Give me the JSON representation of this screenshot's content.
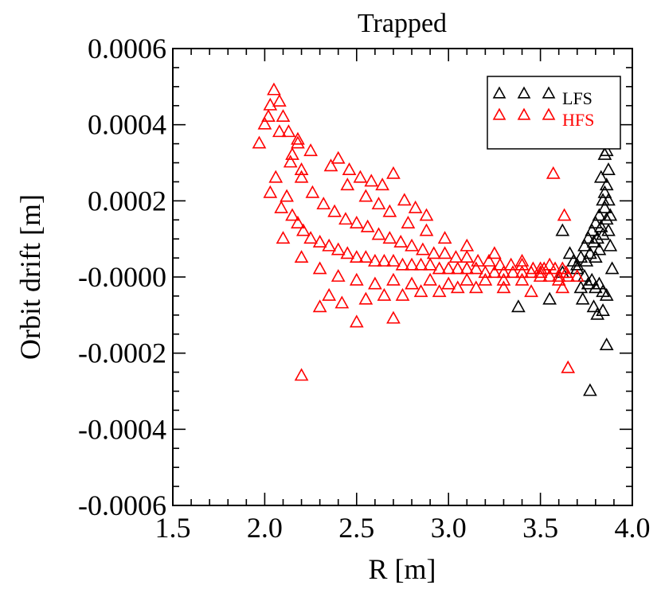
{
  "chart_data": {
    "type": "scatter",
    "title": "Trapped",
    "xlabel": "R [m]",
    "ylabel": "Orbit drift [m]",
    "xlim": [
      1.5,
      4.0
    ],
    "ylim": [
      -0.0006,
      0.0006
    ],
    "xticks": [
      1.5,
      2.0,
      2.5,
      3.0,
      3.5,
      4.0
    ],
    "xtick_labels": [
      "1.5",
      "2.0",
      "2.5",
      "3.0",
      "3.5",
      "4.0"
    ],
    "yticks": [
      -0.0006,
      -0.0004,
      -0.0002,
      0.0,
      0.0002,
      0.0004,
      0.0006
    ],
    "ytick_labels": [
      "-0.0006",
      "-0.0004",
      "-0.0002",
      "-0.0000",
      "0.0002",
      "0.0004",
      "0.0006"
    ],
    "grid": false,
    "legend_position": "top-right",
    "marker": "open-triangle",
    "series": [
      {
        "name": "LFS",
        "color": "#000000",
        "x": [
          3.62,
          3.66,
          3.68,
          3.7,
          3.72,
          3.74,
          3.75,
          3.76,
          3.77,
          3.78,
          3.79,
          3.8,
          3.81,
          3.82,
          3.83,
          3.84,
          3.85,
          3.86,
          3.87,
          3.88,
          3.89,
          3.74,
          3.76,
          3.78,
          3.8,
          3.82,
          3.84,
          3.86,
          3.85,
          3.86,
          3.87,
          3.83,
          3.85,
          3.88,
          3.77,
          3.86,
          3.73,
          3.79,
          3.81,
          3.84,
          3.38,
          3.55,
          3.72,
          3.62,
          3.7,
          3.8,
          3.82,
          3.84,
          3.86,
          3.87
        ],
        "y": [
          0.00012,
          6e-05,
          4e-05,
          2e-05,
          5e-05,
          8e-05,
          4e-05,
          0.0001,
          6e-05,
          0.00012,
          9e-05,
          0.00014,
          0.0001,
          0.00016,
          0.00013,
          0.0002,
          0.00018,
          0.00024,
          0.0002,
          8e-05,
          2e-05,
          0.0,
          -2e-05,
          -1e-05,
          -3e-05,
          -2e-05,
          -4e-05,
          -5e-05,
          0.00032,
          0.00033,
          0.00028,
          0.00026,
          0.00022,
          0.00016,
          -0.0003,
          -0.00018,
          -6e-05,
          -8e-05,
          -0.0001,
          -9e-05,
          -8e-05,
          -6e-05,
          -3e-05,
          1e-05,
          3e-05,
          5e-05,
          7e-05,
          0.00011,
          0.00015,
          0.00012
        ]
      },
      {
        "name": "HFS",
        "color": "#ff0000",
        "x": [
          1.97,
          2.0,
          2.03,
          2.05,
          2.08,
          2.1,
          2.13,
          2.15,
          2.18,
          2.2,
          2.03,
          2.06,
          2.09,
          2.12,
          2.15,
          2.18,
          2.21,
          2.25,
          2.3,
          2.35,
          2.4,
          2.45,
          2.5,
          2.55,
          2.6,
          2.65,
          2.7,
          2.75,
          2.8,
          2.85,
          2.9,
          2.95,
          3.0,
          3.05,
          3.1,
          3.15,
          3.2,
          3.25,
          3.3,
          3.35,
          3.4,
          3.45,
          3.5,
          3.55,
          3.6,
          3.65,
          3.7,
          2.02,
          2.08,
          2.14,
          2.2,
          2.26,
          2.32,
          2.38,
          2.44,
          2.5,
          2.56,
          2.62,
          2.68,
          2.74,
          2.8,
          2.86,
          2.92,
          2.98,
          3.04,
          3.1,
          3.16,
          3.22,
          3.28,
          3.34,
          3.4,
          3.46,
          3.52,
          3.58,
          3.64,
          2.1,
          2.2,
          2.3,
          2.4,
          2.5,
          2.6,
          2.7,
          2.8,
          2.9,
          3.0,
          3.1,
          3.2,
          3.3,
          3.4,
          3.5,
          3.6,
          2.4,
          2.46,
          2.52,
          2.58,
          2.64,
          2.7,
          2.76,
          2.82,
          2.88,
          2.2,
          2.3,
          2.5,
          2.7,
          3.57,
          3.63,
          3.65,
          2.18,
          2.25,
          2.36,
          2.45,
          2.55,
          2.62,
          2.68,
          2.78,
          2.88,
          2.98,
          3.1,
          3.25,
          3.4,
          3.5,
          3.55,
          3.62,
          2.35,
          2.42,
          2.55,
          2.65,
          2.75,
          2.85,
          2.95,
          3.05,
          3.15,
          3.3,
          3.45,
          3.62
        ],
        "y": [
          0.00035,
          0.0004,
          0.00045,
          0.00049,
          0.00046,
          0.00042,
          0.00038,
          0.00032,
          0.00036,
          0.00028,
          0.00022,
          0.00026,
          0.00018,
          0.00021,
          0.00016,
          0.00014,
          0.00012,
          0.0001,
          9e-05,
          8e-05,
          7e-05,
          6e-05,
          5e-05,
          5e-05,
          4e-05,
          4e-05,
          4e-05,
          3e-05,
          3e-05,
          3e-05,
          3e-05,
          2e-05,
          2e-05,
          2e-05,
          2e-05,
          2e-05,
          1e-05,
          1e-05,
          1e-05,
          1e-05,
          1e-05,
          1e-05,
          1e-05,
          0.0,
          0.0,
          0.0,
          0.0,
          0.00042,
          0.00038,
          0.0003,
          0.00026,
          0.00022,
          0.00019,
          0.00017,
          0.00015,
          0.00014,
          0.00013,
          0.00011,
          0.0001,
          9e-05,
          8e-05,
          7e-05,
          6e-05,
          6e-05,
          5e-05,
          5e-05,
          4e-05,
          4e-05,
          3e-05,
          3e-05,
          3e-05,
          2e-05,
          2e-05,
          2e-05,
          1e-05,
          0.0001,
          5e-05,
          2e-05,
          0.0,
          -1e-05,
          -2e-05,
          -1e-05,
          -2e-05,
          -1e-05,
          -2e-05,
          -1e-05,
          -1e-05,
          -1e-05,
          -1e-05,
          0.0,
          -1e-05,
          0.00031,
          0.00028,
          0.00026,
          0.00025,
          0.00024,
          0.00027,
          0.0002,
          0.00018,
          0.00016,
          -0.00026,
          -8e-05,
          -0.00012,
          -0.00011,
          0.00027,
          0.00016,
          -0.00024,
          0.00035,
          0.00033,
          0.00029,
          0.00024,
          0.00021,
          0.00019,
          0.00017,
          0.00014,
          0.00012,
          0.0001,
          8e-05,
          6e-05,
          4e-05,
          2e-05,
          3e-05,
          2e-05,
          -5e-05,
          -7e-05,
          -6e-05,
          -5e-05,
          -5e-05,
          -4e-05,
          -4e-05,
          -3e-05,
          -3e-05,
          -3e-05,
          -4e-05,
          -3e-05
        ]
      }
    ]
  },
  "colors": {
    "axis": "#000000",
    "lfs": "#000000",
    "hfs": "#ff0000",
    "background": "#ffffff"
  }
}
